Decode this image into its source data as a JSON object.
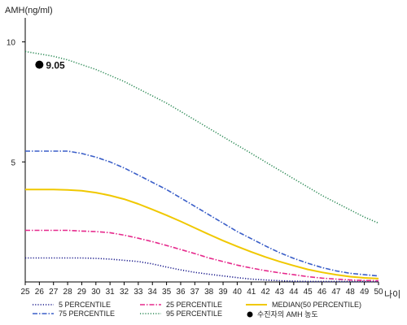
{
  "chart_data": {
    "type": "line",
    "ylabel": "AMH(ng/ml)",
    "xlabel": "나이",
    "x": [
      25,
      26,
      27,
      28,
      29,
      30,
      31,
      32,
      33,
      34,
      35,
      36,
      37,
      38,
      39,
      40,
      41,
      42,
      43,
      44,
      45,
      46,
      47,
      48,
      49,
      50
    ],
    "x_ticks": [
      "25",
      "26",
      "27",
      "28",
      "29",
      "30",
      "31",
      "32",
      "33",
      "34",
      "35",
      "36",
      "37",
      "38",
      "39",
      "40",
      "41",
      "42",
      "43",
      "44",
      "45",
      "46",
      "47",
      "48",
      "49",
      "50"
    ],
    "ylim": [
      0,
      11
    ],
    "y_ticks": [
      "5",
      "10"
    ],
    "y_tick_values": [
      5,
      10
    ],
    "grid": false,
    "legend_position": "bottom",
    "series": [
      {
        "name": "5 PERCENTILE",
        "color": "#1a1a8c",
        "dash": "dotted",
        "values": [
          1.0,
          1.0,
          1.0,
          1.0,
          1.0,
          0.98,
          0.95,
          0.9,
          0.85,
          0.75,
          0.62,
          0.5,
          0.4,
          0.32,
          0.25,
          0.18,
          0.12,
          0.08,
          0.05,
          0.03,
          0.02,
          0.02,
          0.02,
          0.02,
          0.02,
          0.02
        ]
      },
      {
        "name": "25 PERCENTILE",
        "color": "#e6298c",
        "dash": "dash-dot",
        "values": [
          2.15,
          2.15,
          2.15,
          2.15,
          2.12,
          2.1,
          2.05,
          1.95,
          1.82,
          1.68,
          1.52,
          1.35,
          1.18,
          1.0,
          0.85,
          0.7,
          0.58,
          0.47,
          0.38,
          0.3,
          0.22,
          0.16,
          0.12,
          0.08,
          0.06,
          0.05
        ]
      },
      {
        "name": "75 PERCENTILE",
        "color": "#3a5ec8",
        "dash": "dash-dot",
        "values": [
          5.45,
          5.45,
          5.45,
          5.45,
          5.35,
          5.2,
          5.0,
          4.75,
          4.45,
          4.15,
          3.85,
          3.5,
          3.15,
          2.8,
          2.45,
          2.1,
          1.8,
          1.5,
          1.22,
          0.98,
          0.78,
          0.6,
          0.46,
          0.36,
          0.3,
          0.25
        ]
      },
      {
        "name": "95 PERCENTILE",
        "color": "#2e8b57",
        "dash": "dotted",
        "values": [
          9.6,
          9.5,
          9.4,
          9.25,
          9.05,
          8.85,
          8.6,
          8.35,
          8.05,
          7.75,
          7.45,
          7.1,
          6.75,
          6.4,
          6.05,
          5.7,
          5.35,
          5.0,
          4.65,
          4.3,
          3.95,
          3.6,
          3.3,
          3.0,
          2.7,
          2.45
        ]
      },
      {
        "name": "MEDIAN(50 PERCENTILE)",
        "color": "#f0c800",
        "dash": "solid",
        "values": [
          3.85,
          3.85,
          3.85,
          3.83,
          3.8,
          3.72,
          3.6,
          3.45,
          3.25,
          3.02,
          2.78,
          2.52,
          2.25,
          1.98,
          1.72,
          1.48,
          1.25,
          1.04,
          0.85,
          0.68,
          0.52,
          0.4,
          0.3,
          0.22,
          0.17,
          0.14
        ]
      }
    ],
    "annotations": [
      {
        "type": "point",
        "x": 26,
        "y": 9.05,
        "label": "9.05",
        "legend": "수진자의 AMH 농도"
      }
    ]
  }
}
